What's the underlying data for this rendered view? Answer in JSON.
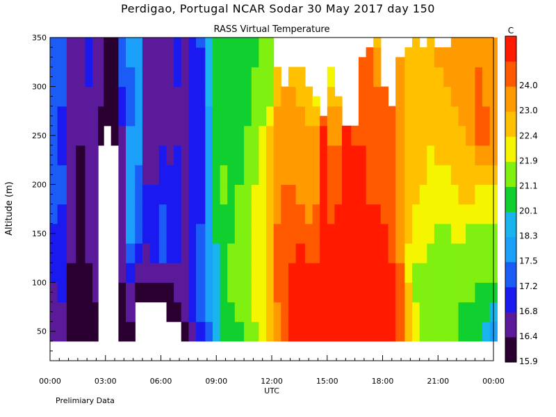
{
  "header": {
    "title": "Perdigao, Portugal  NCAR Sodar  30 May 2017  day 150",
    "subtitle": "RASS Virtual Temperature",
    "footer": "Prelimiary Data"
  },
  "chart_data": {
    "type": "heatmap",
    "title": "RASS Virtual Temperature",
    "xlabel": "UTC",
    "ylabel": "Altitude (m)",
    "x_range_hours": [
      0,
      24
    ],
    "x_ticks": [
      {
        "hour": 0,
        "label": "00:00"
      },
      {
        "hour": 3,
        "label": "03:00"
      },
      {
        "hour": 6,
        "label": "06:00"
      },
      {
        "hour": 9,
        "label": "09:00"
      },
      {
        "hour": 12,
        "label": "12:00"
      },
      {
        "hour": 15,
        "label": "15:00"
      },
      {
        "hour": 18,
        "label": "18:00"
      },
      {
        "hour": 21,
        "label": "21:00"
      },
      {
        "hour": 24,
        "label": "00:00"
      }
    ],
    "ylim": [
      20,
      350
    ],
    "y_ticks": [
      50,
      100,
      150,
      200,
      250,
      300,
      350
    ],
    "colorbar": {
      "unit": "C",
      "levels": [
        "15.9",
        "16.4",
        "16.8",
        "17.2",
        "17.5",
        "18.3",
        "20.1",
        "21.1",
        "21.9",
        "22.4",
        "23.0",
        "24.0"
      ],
      "colors": [
        "#2a0030",
        "#5a1a9a",
        "#1a1af0",
        "#1a5cf5",
        "#1aa0f8",
        "#19b4ee",
        "#10d030",
        "#7ff010",
        "#f5f500",
        "#ffc000",
        "#ff9a00",
        "#ff5a00",
        "#ff1a00"
      ]
    },
    "profile_heights": [
      40,
      60,
      80,
      100,
      120,
      140,
      160,
      180,
      200,
      220,
      240,
      260,
      280,
      300,
      320,
      340,
      350
    ],
    "columns": [
      {
        "t": 0.0,
        "top": 350,
        "v": [
          1,
          1,
          1,
          2,
          2,
          2,
          3,
          3,
          3,
          3,
          3,
          3,
          3,
          3,
          3,
          3,
          3
        ]
      },
      {
        "t": 0.4,
        "top": 350,
        "v": [
          1,
          1,
          2,
          2,
          2,
          2,
          2,
          3,
          3,
          2,
          2,
          2,
          3,
          3,
          3,
          3,
          3
        ]
      },
      {
        "t": 0.9,
        "top": 350,
        "v": [
          0,
          0,
          0,
          0,
          1,
          1,
          1,
          1,
          1,
          1,
          1,
          1,
          1,
          1,
          1,
          1,
          1
        ]
      },
      {
        "t": 1.4,
        "top": 350,
        "v": [
          0,
          0,
          0,
          0,
          0,
          0,
          0,
          0,
          0,
          0,
          1,
          1,
          1,
          1,
          1,
          1,
          1
        ]
      },
      {
        "t": 1.9,
        "top": 350,
        "v": [
          0,
          0,
          0,
          0,
          1,
          1,
          1,
          1,
          1,
          1,
          1,
          1,
          1,
          2,
          2,
          2,
          2
        ]
      },
      {
        "t": 2.3,
        "top": 350,
        "v": [
          0,
          0,
          1,
          1,
          1,
          1,
          1,
          1,
          1,
          1,
          1,
          1,
          1,
          1,
          1,
          1,
          1
        ]
      },
      {
        "t": 2.6,
        "top": 350,
        "v": [
          -1,
          -1,
          -1,
          -1,
          -1,
          -1,
          -1,
          -1,
          -1,
          -1,
          0,
          0,
          1,
          1,
          1,
          1,
          1
        ]
      },
      {
        "t": 2.9,
        "top": 350,
        "v": [
          -1,
          -1,
          -1,
          -1,
          -1,
          -1,
          -1,
          -1,
          -1,
          -1,
          -1,
          0,
          0,
          0,
          0,
          0,
          0
        ]
      },
      {
        "t": 3.3,
        "top": 350,
        "v": [
          -1,
          -1,
          -1,
          -1,
          -1,
          -1,
          -1,
          -1,
          -1,
          -1,
          0,
          0,
          0,
          0,
          0,
          0,
          0
        ]
      },
      {
        "t": 3.7,
        "top": 350,
        "v": [
          0,
          0,
          0,
          1,
          1,
          1,
          1,
          1,
          1,
          1,
          1,
          2,
          2,
          3,
          3,
          3,
          3
        ]
      },
      {
        "t": 4.1,
        "top": 350,
        "v": [
          0,
          1,
          1,
          2,
          3,
          4,
          4,
          4,
          4,
          4,
          4,
          3,
          3,
          3,
          4,
          4,
          4
        ]
      },
      {
        "t": 4.6,
        "top": 350,
        "v": [
          -1,
          -1,
          0,
          1,
          2,
          3,
          3,
          3,
          3,
          4,
          4,
          4,
          4,
          4,
          4,
          4,
          4
        ]
      },
      {
        "t": 5.0,
        "top": 350,
        "v": [
          -1,
          -1,
          0,
          1,
          1,
          2,
          2,
          2,
          1,
          1,
          1,
          1,
          1,
          1,
          1,
          1,
          1
        ]
      },
      {
        "t": 5.4,
        "top": 350,
        "v": [
          -1,
          -1,
          0,
          1,
          2,
          2,
          2,
          2,
          1,
          1,
          1,
          1,
          1,
          1,
          1,
          1,
          1
        ]
      },
      {
        "t": 5.9,
        "top": 350,
        "v": [
          -1,
          -1,
          0,
          1,
          3,
          3,
          3,
          2,
          2,
          2,
          1,
          1,
          1,
          1,
          1,
          1,
          1
        ]
      },
      {
        "t": 6.3,
        "top": 350,
        "v": [
          -1,
          0,
          0,
          1,
          2,
          2,
          2,
          2,
          2,
          1,
          1,
          1,
          1,
          1,
          1,
          1,
          1
        ]
      },
      {
        "t": 6.7,
        "top": 350,
        "v": [
          -1,
          0,
          1,
          1,
          2,
          2,
          2,
          2,
          2,
          2,
          1,
          1,
          1,
          2,
          2,
          2,
          2
        ]
      },
      {
        "t": 7.1,
        "top": 350,
        "v": [
          0,
          1,
          1,
          1,
          1,
          1,
          1,
          1,
          1,
          1,
          1,
          1,
          1,
          1,
          1,
          1,
          1
        ]
      },
      {
        "t": 7.5,
        "top": 350,
        "v": [
          1,
          2,
          2,
          2,
          2,
          2,
          2,
          2,
          2,
          2,
          2,
          2,
          2,
          2,
          2,
          2,
          2
        ]
      },
      {
        "t": 7.9,
        "top": 350,
        "v": [
          2,
          3,
          3,
          3,
          3,
          3,
          2,
          2,
          2,
          2,
          2,
          2,
          2,
          2,
          2,
          3,
          3
        ]
      },
      {
        "t": 8.4,
        "top": 350,
        "v": [
          3,
          4,
          4,
          4,
          4,
          4,
          4,
          4,
          4,
          4,
          4,
          4,
          5,
          5,
          5,
          5,
          5
        ]
      },
      {
        "t": 8.8,
        "top": 350,
        "v": [
          5,
          5,
          5,
          5,
          5,
          6,
          6,
          6,
          6,
          6,
          6,
          6,
          6,
          6,
          6,
          6,
          6
        ]
      },
      {
        "t": 9.2,
        "top": 350,
        "v": [
          6,
          6,
          6,
          6,
          6,
          6,
          6,
          7,
          7,
          6,
          6,
          6,
          6,
          6,
          6,
          6,
          6
        ]
      },
      {
        "t": 9.6,
        "top": 350,
        "v": [
          6,
          6,
          7,
          7,
          7,
          6,
          6,
          6,
          6,
          6,
          6,
          6,
          6,
          6,
          6,
          6,
          6
        ]
      },
      {
        "t": 10.0,
        "top": 350,
        "v": [
          6,
          7,
          7,
          7,
          7,
          7,
          7,
          7,
          6,
          6,
          6,
          6,
          6,
          6,
          6,
          6,
          6
        ]
      },
      {
        "t": 10.5,
        "top": 350,
        "v": [
          7,
          7,
          7,
          7,
          7,
          7,
          7,
          7,
          7,
          7,
          7,
          6,
          6,
          6,
          6,
          6,
          6
        ]
      },
      {
        "t": 10.9,
        "top": 350,
        "v": [
          7,
          8,
          8,
          8,
          8,
          8,
          8,
          8,
          7,
          7,
          7,
          7,
          7,
          7,
          6,
          6,
          6
        ]
      },
      {
        "t": 11.3,
        "top": 350,
        "v": [
          8,
          8,
          8,
          8,
          8,
          8,
          8,
          8,
          8,
          8,
          8,
          7,
          7,
          7,
          7,
          7,
          7
        ]
      },
      {
        "t": 11.7,
        "top": 350,
        "v": [
          9,
          9,
          9,
          9,
          9,
          9,
          9,
          9,
          9,
          9,
          9,
          8,
          7,
          7,
          7,
          7,
          7
        ]
      },
      {
        "t": 12.1,
        "top": 320,
        "v": [
          10,
          10,
          11,
          11,
          11,
          11,
          10,
          10,
          10,
          10,
          10,
          10,
          9,
          9,
          8,
          8,
          8
        ]
      },
      {
        "t": 12.5,
        "top": 300,
        "v": [
          11,
          11,
          11,
          11,
          11,
          11,
          11,
          11,
          10,
          10,
          10,
          10,
          10,
          9,
          9,
          9,
          9
        ]
      },
      {
        "t": 12.9,
        "top": 320,
        "v": [
          12,
          12,
          12,
          12,
          11,
          11,
          11,
          11,
          10,
          10,
          10,
          10,
          10,
          9,
          8,
          8,
          8
        ]
      },
      {
        "t": 13.3,
        "top": 320,
        "v": [
          12,
          12,
          12,
          12,
          12,
          11,
          11,
          10,
          10,
          10,
          10,
          10,
          9,
          9,
          7,
          7,
          7
        ]
      },
      {
        "t": 13.8,
        "top": 300,
        "v": [
          12,
          12,
          12,
          12,
          11,
          11,
          10,
          10,
          10,
          10,
          10,
          9,
          9,
          8,
          7,
          7,
          7
        ]
      },
      {
        "t": 14.2,
        "top": 290,
        "v": [
          12,
          12,
          12,
          12,
          11,
          11,
          11,
          10,
          10,
          10,
          10,
          9,
          8,
          7,
          7,
          7,
          7
        ]
      },
      {
        "t": 14.6,
        "top": 270,
        "v": [
          12,
          12,
          12,
          12,
          12,
          12,
          12,
          12,
          12,
          12,
          12,
          11,
          10,
          10,
          10,
          10,
          10
        ]
      },
      {
        "t": 15.0,
        "top": 320,
        "v": [
          12,
          12,
          12,
          12,
          12,
          12,
          11,
          11,
          11,
          11,
          10,
          10,
          9,
          8,
          7,
          7,
          7
        ]
      },
      {
        "t": 15.4,
        "top": 290,
        "v": [
          12,
          12,
          12,
          12,
          12,
          12,
          12,
          11,
          11,
          11,
          10,
          10,
          9,
          9,
          9,
          9,
          9
        ]
      },
      {
        "t": 15.8,
        "top": 260,
        "v": [
          12,
          12,
          12,
          12,
          12,
          12,
          12,
          12,
          12,
          12,
          12,
          12,
          10,
          10,
          10,
          10,
          10
        ]
      },
      {
        "t": 16.3,
        "top": 260,
        "v": [
          12,
          12,
          12,
          12,
          12,
          12,
          12,
          12,
          12,
          12,
          11,
          11,
          11,
          11,
          11,
          11,
          11
        ]
      },
      {
        "t": 16.7,
        "top": 330,
        "v": [
          12,
          12,
          12,
          12,
          12,
          12,
          12,
          12,
          12,
          12,
          11,
          11,
          11,
          11,
          11,
          10,
          10
        ]
      },
      {
        "t": 17.1,
        "top": 340,
        "v": [
          12,
          12,
          12,
          12,
          12,
          12,
          12,
          11,
          11,
          11,
          11,
          11,
          11,
          11,
          11,
          10,
          10
        ]
      },
      {
        "t": 17.5,
        "top": 350,
        "v": [
          12,
          12,
          12,
          12,
          12,
          12,
          12,
          11,
          11,
          11,
          11,
          11,
          11,
          10,
          10,
          9,
          9
        ]
      },
      {
        "t": 17.9,
        "top": 300,
        "v": [
          12,
          12,
          12,
          12,
          12,
          12,
          11,
          11,
          11,
          11,
          11,
          11,
          11,
          10,
          10,
          10,
          10
        ]
      },
      {
        "t": 18.3,
        "top": 280,
        "v": [
          12,
          12,
          12,
          12,
          11,
          11,
          11,
          11,
          11,
          11,
          11,
          11,
          11,
          10,
          10,
          10,
          10
        ]
      },
      {
        "t": 18.7,
        "top": 330,
        "v": [
          11,
          11,
          11,
          11,
          10,
          10,
          10,
          10,
          10,
          10,
          10,
          10,
          10,
          10,
          10,
          9,
          9
        ]
      },
      {
        "t": 19.2,
        "top": 340,
        "v": [
          9,
          9,
          9,
          8,
          8,
          9,
          9,
          9,
          9,
          9,
          9,
          9,
          9,
          9,
          9,
          9,
          9
        ]
      },
      {
        "t": 19.6,
        "top": 350,
        "v": [
          8,
          8,
          7,
          7,
          8,
          8,
          8,
          9,
          9,
          9,
          9,
          9,
          9,
          9,
          9,
          9,
          9
        ]
      },
      {
        "t": 20.0,
        "top": 340,
        "v": [
          7,
          7,
          7,
          7,
          8,
          8,
          8,
          8,
          9,
          9,
          9,
          9,
          9,
          9,
          9,
          9,
          9
        ]
      },
      {
        "t": 20.4,
        "top": 350,
        "v": [
          7,
          7,
          7,
          7,
          7,
          8,
          8,
          8,
          8,
          8,
          9,
          9,
          9,
          9,
          9,
          9,
          9
        ]
      },
      {
        "t": 20.8,
        "top": 340,
        "v": [
          7,
          7,
          7,
          7,
          7,
          7,
          8,
          8,
          8,
          9,
          9,
          9,
          9,
          9,
          10,
          10,
          10
        ]
      },
      {
        "t": 21.3,
        "top": 340,
        "v": [
          7,
          7,
          7,
          7,
          7,
          7,
          8,
          8,
          8,
          9,
          9,
          9,
          9,
          10,
          10,
          10,
          10
        ]
      },
      {
        "t": 21.7,
        "top": 350,
        "v": [
          7,
          7,
          7,
          7,
          7,
          8,
          8,
          8,
          9,
          9,
          9,
          9,
          10,
          10,
          10,
          10,
          10
        ]
      },
      {
        "t": 22.1,
        "top": 350,
        "v": [
          6,
          6,
          7,
          7,
          7,
          8,
          8,
          9,
          9,
          9,
          9,
          10,
          10,
          10,
          10,
          10,
          10
        ]
      },
      {
        "t": 22.5,
        "top": 350,
        "v": [
          6,
          6,
          7,
          7,
          7,
          7,
          8,
          9,
          9,
          9,
          10,
          10,
          10,
          10,
          10,
          10,
          10
        ]
      },
      {
        "t": 23.0,
        "top": 350,
        "v": [
          6,
          6,
          6,
          7,
          7,
          7,
          8,
          8,
          9,
          10,
          11,
          11,
          11,
          11,
          10,
          10,
          10
        ]
      },
      {
        "t": 23.4,
        "top": 350,
        "v": [
          5,
          6,
          6,
          7,
          7,
          7,
          8,
          8,
          9,
          10,
          11,
          11,
          10,
          10,
          10,
          10,
          10
        ]
      },
      {
        "t": 23.8,
        "top": 350,
        "v": [
          4,
          5,
          6,
          7,
          7,
          7,
          8,
          8,
          9,
          10,
          10,
          10,
          10,
          10,
          10,
          10,
          10
        ]
      }
    ]
  }
}
